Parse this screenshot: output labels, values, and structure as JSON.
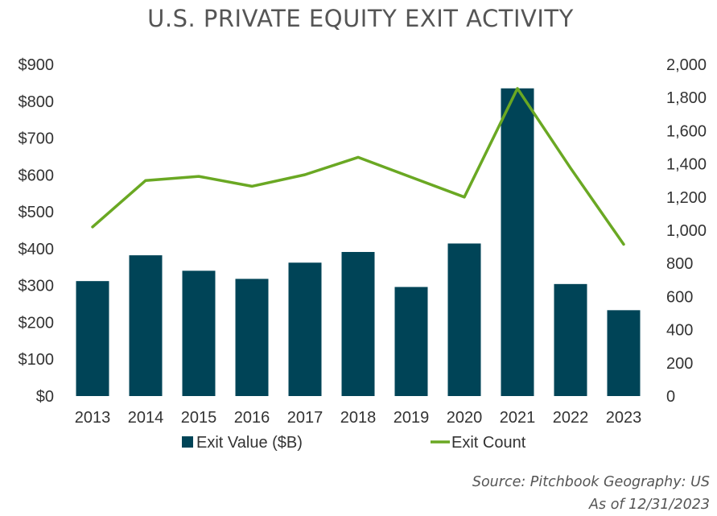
{
  "chart_data": {
    "type": "bar",
    "title": "U.S. PRIVATE EQUITY EXIT ACTIVITY",
    "categories": [
      "2013",
      "2014",
      "2015",
      "2016",
      "2017",
      "2018",
      "2019",
      "2020",
      "2021",
      "2022",
      "2023"
    ],
    "series": [
      {
        "name": "Exit Value ($B)",
        "kind": "bar",
        "axis": "left",
        "color": "#004457",
        "values": [
          312,
          382,
          340,
          318,
          362,
          391,
          296,
          414,
          835,
          304,
          233
        ]
      },
      {
        "name": "Exit Count",
        "kind": "line",
        "axis": "right",
        "color": "#6aa823",
        "values": [
          1020,
          1300,
          1325,
          1265,
          1335,
          1440,
          1320,
          1200,
          1855,
          1375,
          915
        ]
      }
    ],
    "y_left": {
      "lim": [
        0,
        900
      ],
      "ticks": [
        "$0",
        "$100",
        "$200",
        "$300",
        "$400",
        "$500",
        "$600",
        "$700",
        "$800",
        "$900"
      ]
    },
    "y_right": {
      "lim": [
        0,
        2000
      ],
      "ticks": [
        "0",
        "200",
        "400",
        "600",
        "800",
        "1,000",
        "1,200",
        "1,400",
        "1,600",
        "1,800",
        "2,000"
      ]
    },
    "legend": [
      "Exit Value ($B)",
      "Exit Count"
    ],
    "source": "Source: Pitchbook Geography: US",
    "as_of": "As of 12/31/2023"
  }
}
